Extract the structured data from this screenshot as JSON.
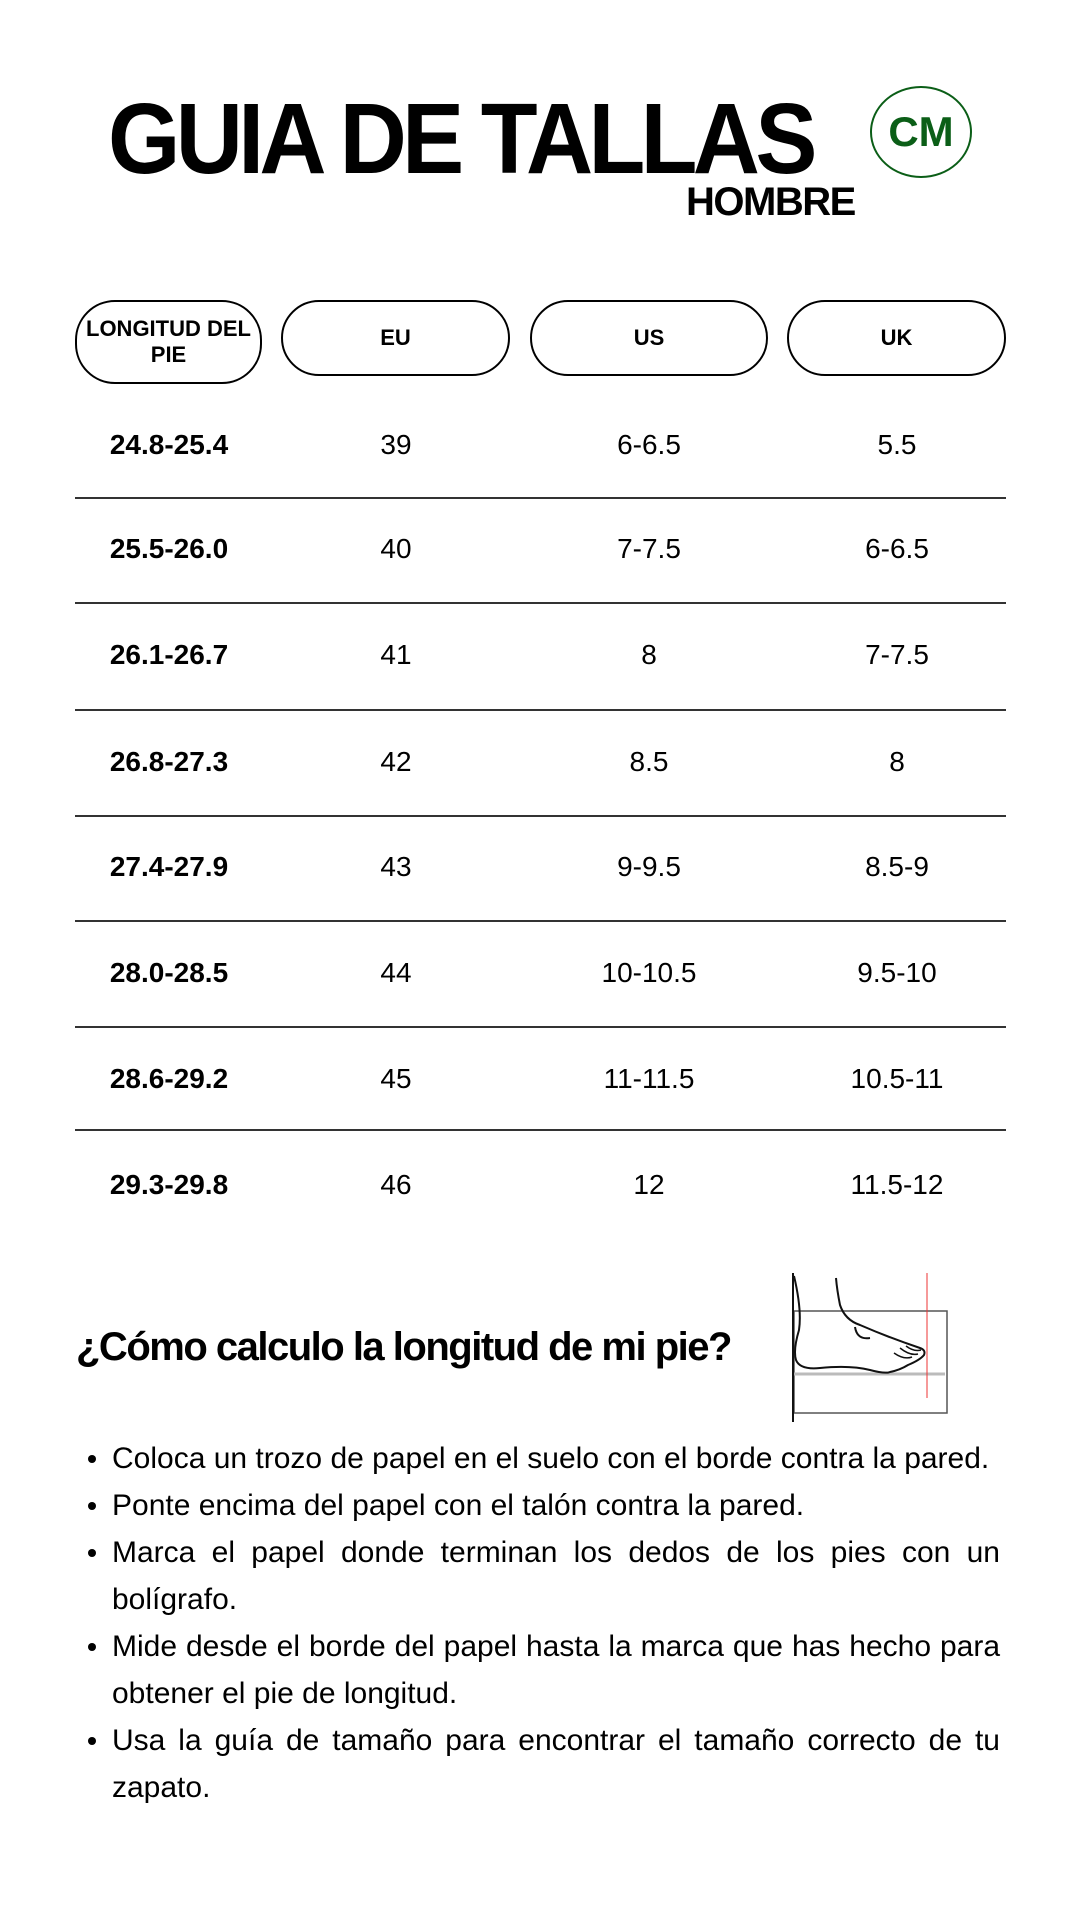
{
  "header": {
    "title": "GUIA DE TALLAS",
    "unit_badge": "CM",
    "subtitle": "HOMBRE",
    "badge_color": "#0b5e17"
  },
  "table": {
    "columns": [
      "LONGITUD DEL PIE",
      "EU",
      "US",
      "UK"
    ],
    "rows": [
      [
        "24.8-25.4",
        "39",
        "6-6.5",
        "5.5"
      ],
      [
        "25.5-26.0",
        "40",
        "7-7.5",
        "6-6.5"
      ],
      [
        "26.1-26.7",
        "41",
        "8",
        "7-7.5"
      ],
      [
        "26.8-27.3",
        "42",
        "8.5",
        "8"
      ],
      [
        "27.4-27.9",
        "43",
        "9-9.5",
        "8.5-9"
      ],
      [
        "28.0-28.5",
        "44",
        "10-10.5",
        "9.5-10"
      ],
      [
        "28.6-29.2",
        "45",
        "11-11.5",
        "10.5-11"
      ],
      [
        "29.3-29.8",
        "46",
        "12",
        "11.5-12"
      ]
    ]
  },
  "howto": {
    "heading": "¿Cómo calculo la longitud de mi pie?",
    "illustration": "foot-measuring-icon",
    "steps": [
      "Coloca un trozo de papel en el suelo con el borde contra la pared.",
      "Ponte encima del papel con el talón contra la pared.",
      "Marca el papel donde terminan los dedos de los pies con un bolígrafo.",
      "Mide desde el borde del papel hasta la marca que has hecho para obtener el pie de longitud.",
      "Usa la guía de tamaño para encontrar el tamaño correcto de tu zapato."
    ]
  }
}
